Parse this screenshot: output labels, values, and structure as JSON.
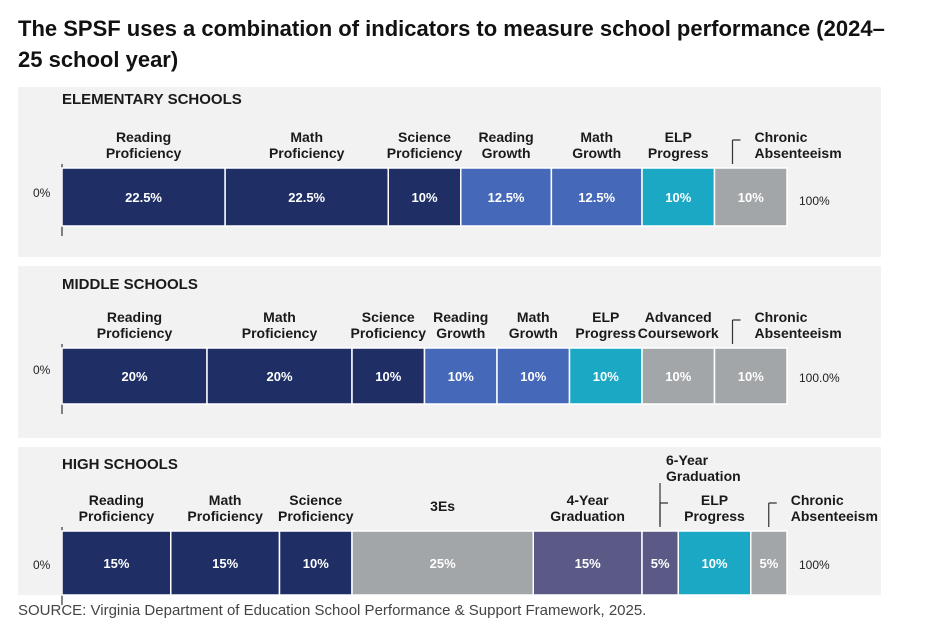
{
  "title": "The SPSF uses a combination of indicators to measure school performance (2024–25 school year)",
  "source": "SOURCE: Virginia Department of Education School Performance & Support Framework, 2025.",
  "colors": {
    "reading_proficiency": "#1f2f66",
    "math_proficiency": "#1f2f66",
    "science_proficiency": "#1f2f66",
    "reading_growth": "#4568b8",
    "math_growth": "#4568b8",
    "elp_progress": "#1aa8c4",
    "chronic_absenteeism": "#a3a6a8",
    "advanced_coursework": "#a3a6a8",
    "three_es": "#a3a6a8",
    "four_year_grad": "#5b5a86",
    "six_year_grad": "#5b5a86",
    "panel_bg": "#f2f2f2"
  },
  "chart_data": [
    {
      "type": "bar",
      "orientation": "horizontal-stacked",
      "title": "ELEMENTARY SCHOOLS",
      "axis_start_label": "0%",
      "axis_end_label": "100%",
      "segments": [
        {
          "label": "Reading Proficiency",
          "value": 22.5,
          "display": "22.5%",
          "color_key": "reading_proficiency"
        },
        {
          "label": "Math Proficiency",
          "value": 22.5,
          "display": "22.5%",
          "color_key": "math_proficiency"
        },
        {
          "label": "Science Proficiency",
          "value": 10,
          "display": "10%",
          "color_key": "science_proficiency"
        },
        {
          "label": "Reading Growth",
          "value": 12.5,
          "display": "12.5%",
          "color_key": "reading_growth"
        },
        {
          "label": "Math Growth",
          "value": 12.5,
          "display": "12.5%",
          "color_key": "math_growth"
        },
        {
          "label": "ELP Progress",
          "value": 10,
          "display": "10%",
          "color_key": "elp_progress"
        },
        {
          "label": "Chronic Absenteeism",
          "value": 10,
          "display": "10%",
          "color_key": "chronic_absenteeism"
        }
      ]
    },
    {
      "type": "bar",
      "orientation": "horizontal-stacked",
      "title": "MIDDLE SCHOOLS",
      "axis_start_label": "0%",
      "axis_end_label": "100.0%",
      "segments": [
        {
          "label": "Reading Proficiency",
          "value": 20,
          "display": "20%",
          "color_key": "reading_proficiency"
        },
        {
          "label": "Math Proficiency",
          "value": 20,
          "display": "20%",
          "color_key": "math_proficiency"
        },
        {
          "label": "Science Proficiency",
          "value": 10,
          "display": "10%",
          "color_key": "science_proficiency"
        },
        {
          "label": "Reading Growth",
          "value": 10,
          "display": "10%",
          "color_key": "reading_growth"
        },
        {
          "label": "Math Growth",
          "value": 10,
          "display": "10%",
          "color_key": "math_growth"
        },
        {
          "label": "ELP Progress",
          "value": 10,
          "display": "10%",
          "color_key": "elp_progress"
        },
        {
          "label": "Advanced Coursework",
          "value": 10,
          "display": "10%",
          "color_key": "advanced_coursework"
        },
        {
          "label": "Chronic Absenteeism",
          "value": 10,
          "display": "10%",
          "color_key": "chronic_absenteeism"
        }
      ]
    },
    {
      "type": "bar",
      "orientation": "horizontal-stacked",
      "title": "HIGH SCHOOLS",
      "axis_start_label": "0%",
      "axis_end_label": "100%",
      "segments": [
        {
          "label": "Reading Proficiency",
          "value": 15,
          "display": "15%",
          "color_key": "reading_proficiency"
        },
        {
          "label": "Math Proficiency",
          "value": 15,
          "display": "15%",
          "color_key": "math_proficiency"
        },
        {
          "label": "Science Proficiency",
          "value": 10,
          "display": "10%",
          "color_key": "science_proficiency"
        },
        {
          "label": "3Es",
          "value": 25,
          "display": "25%",
          "color_key": "three_es"
        },
        {
          "label": "4-Year Graduation",
          "value": 15,
          "display": "15%",
          "color_key": "four_year_grad"
        },
        {
          "label": "6-Year Graduation",
          "value": 5,
          "display": "5%",
          "color_key": "six_year_grad"
        },
        {
          "label": "ELP Progress",
          "value": 10,
          "display": "10%",
          "color_key": "elp_progress"
        },
        {
          "label": "Chronic Absenteeism",
          "value": 5,
          "display": "5%",
          "color_key": "chronic_absenteeism"
        }
      ]
    }
  ]
}
